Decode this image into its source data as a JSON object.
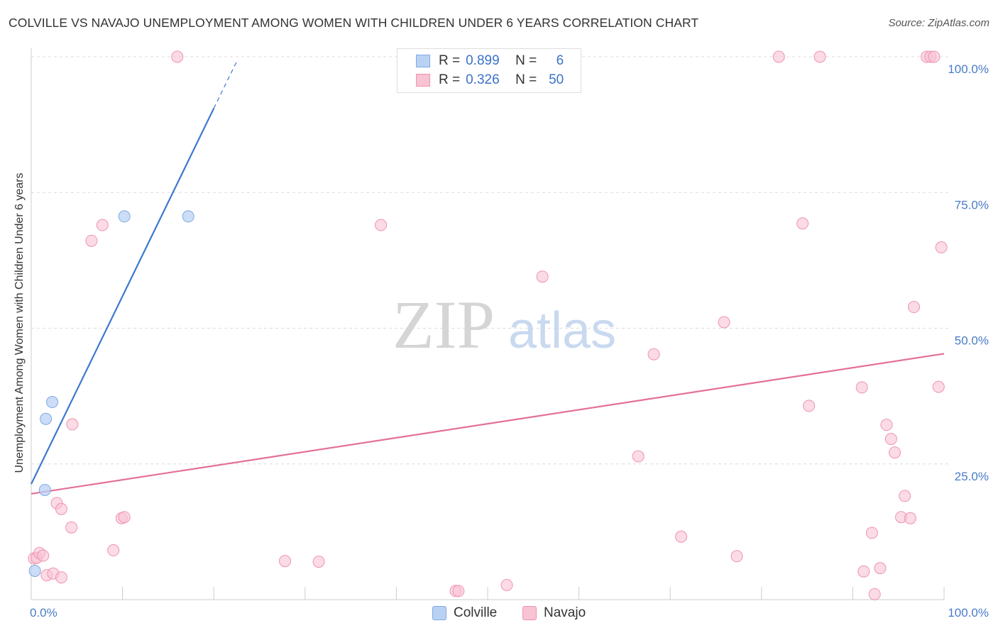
{
  "title": "COLVILLE VS NAVAJO UNEMPLOYMENT AMONG WOMEN WITH CHILDREN UNDER 6 YEARS CORRELATION CHART",
  "source": "Source: ZipAtlas.com",
  "watermark": {
    "zip": "ZIP",
    "atlas": "atlas"
  },
  "stats": {
    "rows": [
      {
        "r_label": "R =",
        "r_value": "0.899",
        "n_label": "N =",
        "n_value": "6",
        "series": "Colville"
      },
      {
        "r_label": "R =",
        "r_value": "0.326",
        "n_label": "N =",
        "n_value": "50",
        "series": "Navajo"
      }
    ]
  },
  "legend": {
    "items": [
      "Colville",
      "Navajo"
    ]
  },
  "colors": {
    "colville_fill": "#b9d2f4",
    "colville_stroke": "#7fa8e3",
    "colville_line": "#3b78d0",
    "navajo_fill": "#f8c3d3",
    "navajo_stroke": "#ef93b1",
    "navajo_line": "#e46f99",
    "grid": "#dcdcdc",
    "axis_label": "#4a7cc9"
  },
  "chart_data": {
    "type": "scatter",
    "title": "COLVILLE VS NAVAJO UNEMPLOYMENT AMONG WOMEN WITH CHILDREN UNDER 6 YEARS CORRELATION CHART",
    "xlabel": "",
    "ylabel": "Unemployment Among Women with Children Under 6 years",
    "xlim": [
      0,
      100
    ],
    "ylim": [
      0,
      100
    ],
    "x_tick_labels": [
      "0.0%",
      "100.0%"
    ],
    "y_ticks": [
      25,
      50,
      75,
      100
    ],
    "y_tick_labels": [
      "25.0%",
      "50.0%",
      "75.0%",
      "100.0%"
    ],
    "legend_position": "bottom-center",
    "grid": true,
    "series": [
      {
        "name": "Colville",
        "R": 0.899,
        "N": 6,
        "points": [
          [
            0.4,
            5.3
          ],
          [
            1.5,
            20.2
          ],
          [
            1.6,
            33.3
          ],
          [
            2.3,
            36.4
          ],
          [
            10.2,
            70.6
          ],
          [
            17.2,
            70.6
          ]
        ],
        "trend": {
          "x0": 0,
          "y0": 21.3,
          "x1": 20,
          "y1": 90.5,
          "dashed_to_x": 22.5,
          "dashed_to_y": 99.1
        }
      },
      {
        "name": "Navajo",
        "R": 0.326,
        "N": 50,
        "points": [
          [
            0.3,
            7.6
          ],
          [
            0.6,
            7.7
          ],
          [
            0.9,
            8.6
          ],
          [
            1.3,
            8.1
          ],
          [
            1.7,
            4.5
          ],
          [
            2.4,
            4.8
          ],
          [
            3.3,
            4.1
          ],
          [
            2.8,
            17.8
          ],
          [
            3.3,
            16.7
          ],
          [
            4.4,
            13.3
          ],
          [
            4.5,
            32.3
          ],
          [
            6.6,
            66.1
          ],
          [
            7.8,
            69.0
          ],
          [
            9.0,
            9.1
          ],
          [
            9.9,
            15.0
          ],
          [
            10.2,
            15.2
          ],
          [
            16.0,
            100.0
          ],
          [
            27.8,
            7.1
          ],
          [
            31.5,
            7.0
          ],
          [
            38.3,
            69.0
          ],
          [
            46.5,
            1.6
          ],
          [
            46.8,
            1.6
          ],
          [
            52.1,
            2.7
          ],
          [
            56.0,
            59.5
          ],
          [
            66.5,
            26.4
          ],
          [
            68.2,
            45.2
          ],
          [
            71.2,
            11.6
          ],
          [
            75.9,
            51.1
          ],
          [
            77.3,
            8.0
          ],
          [
            81.9,
            100.0
          ],
          [
            84.5,
            69.3
          ],
          [
            85.2,
            35.7
          ],
          [
            86.4,
            100.0
          ],
          [
            91.0,
            39.1
          ],
          [
            91.2,
            5.2
          ],
          [
            92.1,
            12.3
          ],
          [
            92.4,
            1.0
          ],
          [
            93.0,
            5.8
          ],
          [
            93.7,
            32.2
          ],
          [
            94.2,
            29.6
          ],
          [
            94.6,
            27.1
          ],
          [
            95.3,
            15.2
          ],
          [
            95.7,
            19.1
          ],
          [
            96.3,
            15.0
          ],
          [
            96.7,
            53.9
          ],
          [
            98.1,
            100.0
          ],
          [
            98.5,
            100.0
          ],
          [
            98.9,
            100.0
          ],
          [
            99.4,
            39.2
          ],
          [
            99.7,
            64.9
          ]
        ],
        "trend": {
          "x0": 0,
          "y0": 19.5,
          "x1": 100,
          "y1": 45.3
        }
      }
    ]
  }
}
